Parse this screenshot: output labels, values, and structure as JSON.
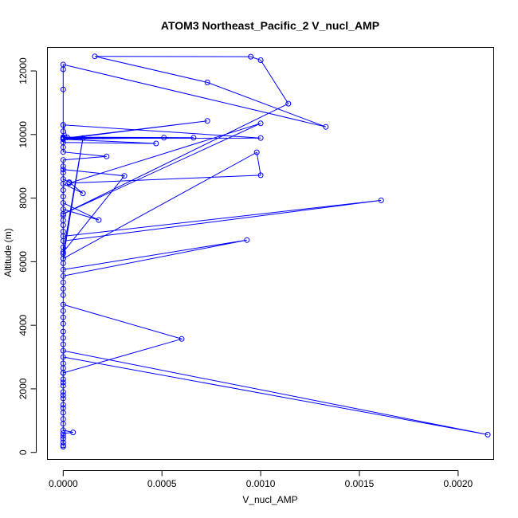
{
  "chart_data": {
    "type": "line",
    "title": "ATOM3 Northeast_Pacific_2 V_nucl_AMP",
    "xlabel": "V_nucl_AMP",
    "ylabel": "Altitude (m)",
    "xlim": [
      -8e-05,
      0.00218
    ],
    "ylim": [
      -220,
      12740
    ],
    "xticks": [
      0,
      0.0005,
      0.001,
      0.0015,
      0.002
    ],
    "xtick_labels": [
      "0.0000",
      "0.0005",
      "0.0010",
      "0.0015",
      "0.0020"
    ],
    "yticks": [
      0,
      2000,
      4000,
      6000,
      8000,
      10000,
      12000
    ],
    "ytick_labels": [
      "0",
      "2000",
      "4000",
      "6000",
      "8000",
      "10000",
      "12000"
    ],
    "grid": false,
    "legend": "none",
    "color": "#0000ff",
    "marker": "open-circle",
    "series": [
      {
        "points": [
          [
            0.0,
            180
          ],
          [
            0.0,
            220
          ],
          [
            0.0,
            320
          ],
          [
            0.0,
            430
          ],
          [
            0.0,
            520
          ],
          [
            0.0,
            600
          ],
          [
            5e-05,
            630
          ],
          [
            0.0,
            700
          ],
          [
            0.0,
            900
          ],
          [
            0.0,
            1050
          ],
          [
            0.0,
            1250
          ],
          [
            0.0,
            1500
          ],
          [
            0.0,
            1700
          ],
          [
            0.0,
            1900
          ],
          [
            0.0,
            2100
          ],
          [
            0.0,
            2300
          ],
          [
            0.0,
            2500
          ],
          [
            0.0,
            2650
          ],
          [
            0.0,
            2800
          ],
          [
            0.0,
            3000
          ],
          [
            0.00215,
            560
          ],
          [
            0.0,
            3200
          ],
          [
            0.0,
            3400
          ],
          [
            0.0,
            3600
          ],
          [
            0.0,
            3800
          ],
          [
            0.0,
            4050
          ],
          [
            0.0,
            4250
          ],
          [
            0.0,
            4450
          ],
          [
            0.0,
            4650
          ],
          [
            0.0006,
            3570
          ],
          [
            0.0,
            2500
          ],
          [
            0.0,
            4950
          ],
          [
            0.0,
            5150
          ],
          [
            0.0,
            5350
          ],
          [
            0.0,
            5550
          ],
          [
            0.00093,
            6680
          ],
          [
            0.0,
            5750
          ],
          [
            0.0,
            5950
          ],
          [
            0.0,
            6100
          ],
          [
            0.0,
            6250
          ],
          [
            0.0,
            6450
          ],
          [
            0.0,
            6650
          ],
          [
            0.00161,
            7930
          ],
          [
            0.0,
            6800
          ],
          [
            0.0,
            6950
          ],
          [
            0.0,
            7150
          ],
          [
            0.0,
            7300
          ],
          [
            0.0,
            7450
          ],
          [
            0.0,
            7650
          ],
          [
            0.00018,
            7310
          ],
          [
            0.0,
            7850
          ],
          [
            0.0,
            8050
          ],
          [
            0.0,
            8250
          ],
          [
            0.0,
            8450
          ],
          [
            0.0001,
            8150
          ],
          [
            3e-05,
            8500
          ],
          [
            0.0,
            8600
          ],
          [
            0.0,
            8800
          ],
          [
            0.0,
            9000
          ],
          [
            0.0,
            9200
          ],
          [
            0.00022,
            9310
          ],
          [
            0.0,
            9450
          ],
          [
            0.0,
            9600
          ],
          [
            0.0,
            9750
          ],
          [
            0.00047,
            9720
          ],
          [
            0.0,
            9850
          ],
          [
            0.00051,
            9900
          ],
          [
            0.0,
            9900
          ],
          [
            0.0,
            10100
          ],
          [
            0.0,
            10300
          ],
          [
            0.001,
            9890
          ],
          [
            0.0,
            9880
          ],
          [
            0.00073,
            10430
          ],
          [
            0.0,
            9860
          ],
          [
            0.00066,
            9900
          ],
          [
            0.0,
            9920
          ],
          [
            2e-05,
            9910
          ],
          [
            0.0,
            10300
          ],
          [
            0.0,
            11420
          ],
          [
            0.0,
            12050
          ],
          [
            0.0,
            12200
          ],
          [
            0.00133,
            10240
          ],
          [
            0.00073,
            11640
          ],
          [
            0.00016,
            12460
          ],
          [
            0.00095,
            12450
          ],
          [
            0.001,
            12340
          ],
          [
            0.00114,
            10970
          ],
          [
            0.0,
            7500
          ],
          [
            0.001,
            10350
          ],
          [
            3e-05,
            8470
          ],
          [
            0.001,
            8720
          ],
          [
            0.00098,
            9440
          ],
          [
            0.0,
            6100
          ],
          [
            0.0001,
            9890
          ],
          [
            0.0,
            6300
          ],
          [
            0.00031,
            8700
          ],
          [
            0.0,
            8900
          ],
          [
            0.0,
            2200
          ],
          [
            0.0,
            1800
          ],
          [
            0.0,
            1400
          ]
        ]
      }
    ]
  }
}
